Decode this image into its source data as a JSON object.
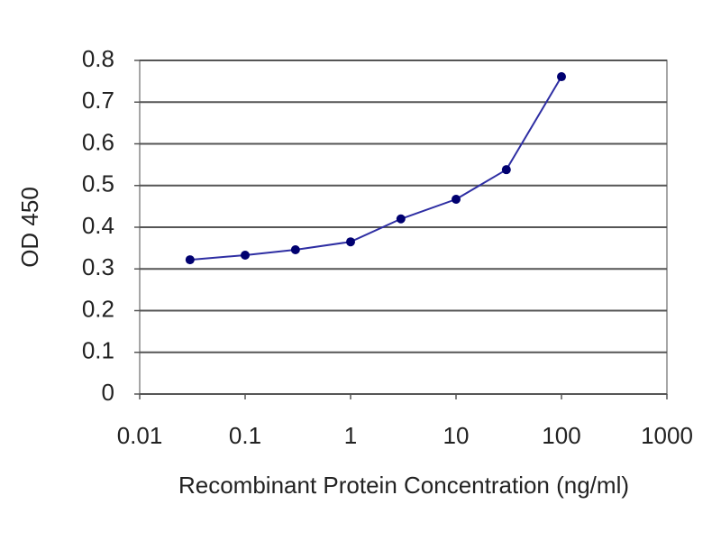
{
  "chart_data": {
    "type": "line",
    "x_label": "Recombinant Protein Concentration (ng/ml)",
    "y_label": "OD 450",
    "x": [
      0.03,
      0.1,
      0.3,
      1,
      3,
      10,
      30,
      100
    ],
    "values": [
      0.322,
      0.333,
      0.346,
      0.365,
      0.42,
      0.467,
      0.538,
      0.761
    ],
    "color": "#2e2ea3",
    "marker_color": "#000070",
    "xlim": [
      0.01,
      1000
    ],
    "xticks": [
      0.01,
      0.1,
      1,
      10,
      100,
      1000
    ],
    "log_x": true,
    "ylim": [
      0,
      0.8
    ],
    "yticks": [
      0,
      0.1,
      0.2,
      0.3,
      0.4,
      0.5,
      0.6,
      0.7,
      0.8
    ],
    "grid": true
  }
}
